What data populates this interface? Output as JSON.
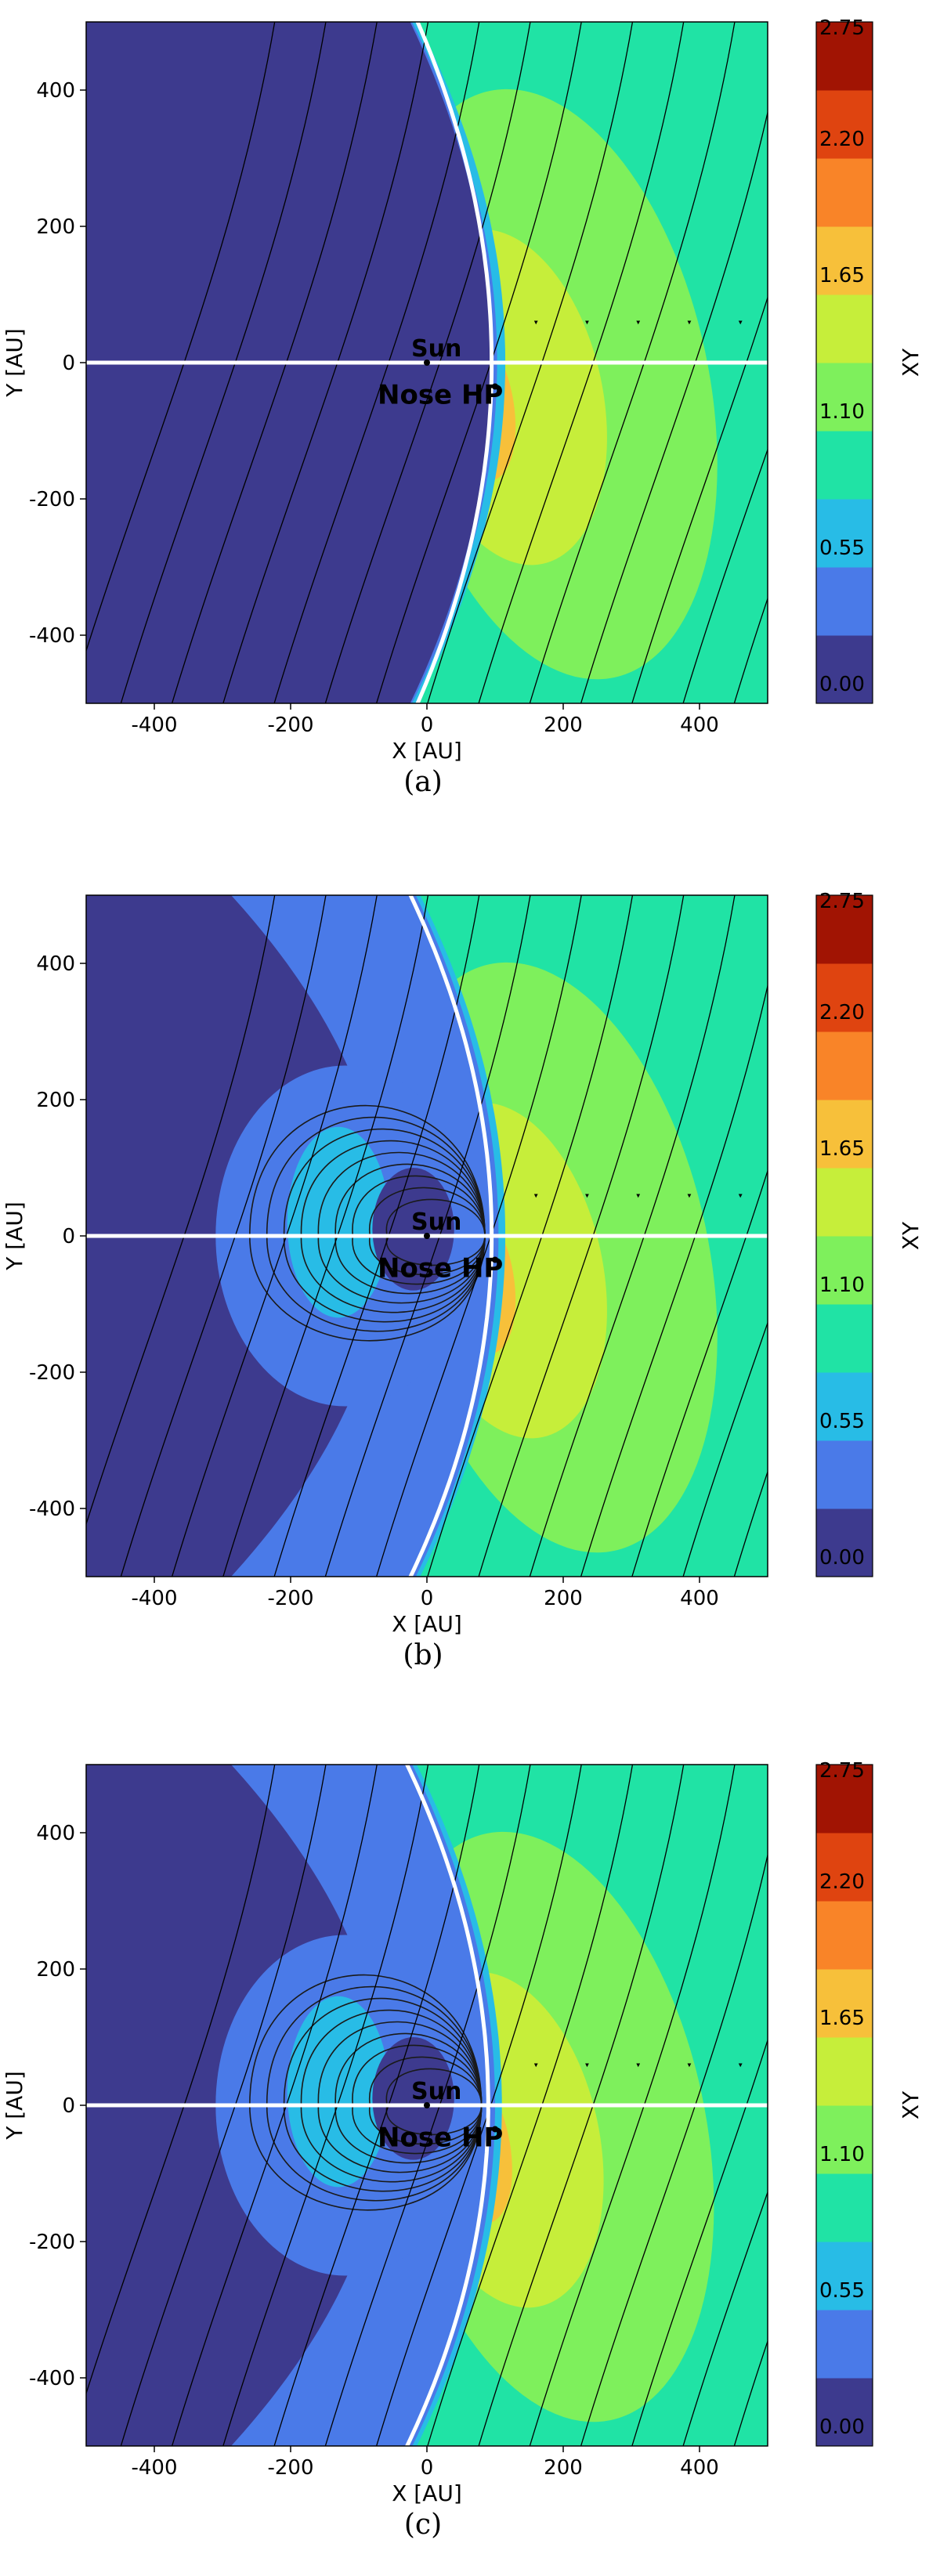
{
  "colorbar": {
    "label": "XY",
    "ticks": [
      "0.00",
      "0.55",
      "1.10",
      "1.65",
      "2.20",
      "2.75"
    ],
    "colors": [
      "#3d3a8e",
      "#4a7ae8",
      "#28bce6",
      "#20e3a5",
      "#7ef05c",
      "#c6ee3a",
      "#f7c03a",
      "#f98428",
      "#df4410",
      "#a11403"
    ]
  },
  "chart_data": [
    {
      "type": "heatmap",
      "caption": "(a)",
      "xlabel": "X [AU]",
      "ylabel": "Y [AU]",
      "xlim": [
        -500,
        500
      ],
      "ylim": [
        -500,
        500
      ],
      "xticks": [
        "-400",
        "-200",
        "0",
        "200",
        "400"
      ],
      "yticks": [
        "-400",
        "-200",
        "0",
        "200",
        "400"
      ],
      "annotations": [
        {
          "text": "Sun",
          "x": 0,
          "y": 0
        },
        {
          "text": "Nose HP",
          "x": 100,
          "y": -35
        }
      ],
      "heliopause_nose_x": 95,
      "closed_field_loops": false
    },
    {
      "type": "heatmap",
      "caption": "(b)",
      "xlabel": "X [AU]",
      "ylabel": "Y [AU]",
      "xlim": [
        -500,
        500
      ],
      "ylim": [
        -500,
        500
      ],
      "xticks": [
        "-400",
        "-200",
        "0",
        "200",
        "400"
      ],
      "yticks": [
        "-400",
        "-200",
        "0",
        "200",
        "400"
      ],
      "annotations": [
        {
          "text": "Sun",
          "x": 0,
          "y": 0
        },
        {
          "text": "Nose HP",
          "x": 100,
          "y": -35
        }
      ],
      "heliopause_nose_x": 95,
      "closed_field_loops": true
    },
    {
      "type": "heatmap",
      "caption": "(c)",
      "xlabel": "X [AU]",
      "ylabel": "Y [AU]",
      "xlim": [
        -500,
        500
      ],
      "ylim": [
        -500,
        500
      ],
      "xticks": [
        "-400",
        "-200",
        "0",
        "200",
        "400"
      ],
      "yticks": [
        "-400",
        "-200",
        "0",
        "200",
        "400"
      ],
      "annotations": [
        {
          "text": "Sun",
          "x": 0,
          "y": 0
        },
        {
          "text": "Nose HP",
          "x": 100,
          "y": -35
        }
      ],
      "heliopause_nose_x": 90,
      "closed_field_loops": true
    }
  ]
}
